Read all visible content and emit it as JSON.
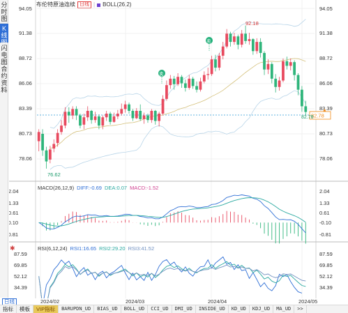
{
  "side_tabs": [
    {
      "label": "分时图",
      "active": false
    },
    {
      "label": "K线图",
      "active": true
    },
    {
      "label": "闪电图",
      "active": false
    },
    {
      "label": "合约资料",
      "active": false
    }
  ],
  "header": {
    "title": "布伦特原油连续",
    "period_badge": "日线",
    "indicator": "BOLL(26,2)",
    "indicator_color": "#6b3fd0"
  },
  "price_axis": {
    "ticks": [
      "94.05",
      "91.38",
      "88.72",
      "86.06",
      "83.39",
      "80.73",
      "78.06"
    ],
    "current_price": "82.78",
    "current_price_left": "82.78"
  },
  "annotations": {
    "high": "92.18",
    "low": "76.62",
    "sell_icon": "卖",
    "sell_icon_2": "卖"
  },
  "macd": {
    "label": "MACD(26,12,9)",
    "diff": "DIFF:-0.69",
    "dea": "DEA:0.07",
    "macd": "MACD:-1.52",
    "diff_color": "#2f6fd6",
    "dea_color": "#2aa9a0",
    "macd_color": "#d04090",
    "ticks": [
      "2.04",
      "1.33",
      "0.61",
      "-0.10",
      "-0.81"
    ]
  },
  "rsi": {
    "label": "RSI(6,12,24)",
    "rsi1": "RSI1:16.65",
    "rsi2": "RSI2:29.20",
    "rsi3": "RSI3:41.52",
    "ticks": [
      "87.59",
      "69.85",
      "52.12",
      "34.39"
    ]
  },
  "x_axis": [
    "2024/02",
    "2024/03",
    "2024/04",
    "2024/05"
  ],
  "bottom_bar": {
    "day_button": "日线",
    "tabs": [
      "指标",
      "模板",
      "VIP指标",
      "BARUPDN_UD",
      "BIAS_UD",
      "BOLL_UD",
      "CCI_UD",
      "DMI_UD",
      "INSIDE_UD",
      "KD_UD",
      "KDJ_UD",
      "MA_UD",
      ">>"
    ]
  },
  "chart_data": {
    "type": "candlestick",
    "title": "布伦特原油连续",
    "ylim": [
      76.0,
      94.05
    ],
    "candles": [
      [
        79.6,
        80.6,
        78.5,
        80.9
      ],
      [
        80.4,
        78.6,
        78.0,
        80.9
      ],
      [
        78.6,
        77.4,
        76.62,
        79.0
      ],
      [
        77.6,
        78.7,
        77.2,
        79.1
      ],
      [
        78.8,
        79.3,
        78.4,
        79.8
      ],
      [
        79.4,
        80.5,
        79.0,
        80.9
      ],
      [
        80.6,
        81.3,
        80.3,
        81.9
      ],
      [
        81.3,
        82.8,
        81.0,
        83.3
      ],
      [
        82.8,
        82.4,
        81.6,
        83.3
      ],
      [
        82.4,
        83.1,
        82.0,
        83.4
      ],
      [
        83.1,
        82.4,
        81.9,
        83.4
      ],
      [
        82.4,
        81.3,
        81.0,
        82.6
      ],
      [
        81.4,
        82.2,
        80.9,
        82.6
      ],
      [
        82.2,
        82.9,
        81.8,
        83.4
      ],
      [
        82.9,
        81.9,
        81.5,
        83.0
      ],
      [
        81.9,
        82.3,
        81.6,
        82.8
      ],
      [
        82.3,
        81.3,
        80.9,
        82.5
      ],
      [
        81.3,
        82.2,
        80.9,
        82.4
      ],
      [
        82.2,
        82.6,
        81.8,
        82.9
      ],
      [
        82.6,
        81.7,
        81.4,
        82.8
      ],
      [
        81.7,
        82.3,
        81.6,
        82.7
      ],
      [
        82.3,
        82.6,
        82.0,
        83.0
      ],
      [
        82.6,
        83.1,
        82.4,
        83.7
      ],
      [
        83.1,
        83.6,
        82.7,
        84.0
      ],
      [
        83.6,
        82.9,
        82.6,
        83.8
      ],
      [
        82.9,
        82.1,
        81.8,
        83.1
      ],
      [
        82.1,
        82.9,
        82.0,
        83.2
      ],
      [
        82.9,
        82.0,
        81.8,
        83.6
      ],
      [
        82.0,
        82.4,
        81.5,
        82.7
      ],
      [
        82.4,
        81.9,
        81.6,
        82.6
      ],
      [
        81.9,
        82.9,
        81.6,
        83.1
      ],
      [
        82.9,
        81.8,
        81.4,
        83.0
      ],
      [
        81.8,
        82.6,
        81.2,
        82.8
      ],
      [
        82.6,
        84.2,
        82.4,
        84.6
      ],
      [
        84.2,
        85.7,
        84.0,
        86.2
      ],
      [
        85.7,
        86.4,
        85.3,
        86.8
      ],
      [
        86.4,
        85.8,
        85.2,
        86.7
      ],
      [
        85.8,
        86.6,
        85.6,
        87.0
      ],
      [
        86.6,
        85.9,
        85.4,
        86.8
      ],
      [
        85.9,
        85.4,
        85.0,
        86.3
      ],
      [
        85.4,
        86.4,
        85.2,
        86.8
      ],
      [
        86.4,
        85.6,
        85.3,
        86.6
      ],
      [
        85.6,
        85.2,
        84.9,
        86.1
      ],
      [
        85.2,
        86.1,
        85.0,
        86.5
      ],
      [
        86.1,
        86.8,
        85.9,
        87.2
      ],
      [
        86.8,
        86.9,
        86.3,
        87.6
      ],
      [
        86.9,
        88.5,
        86.7,
        88.9
      ],
      [
        88.5,
        87.6,
        87.2,
        89.0
      ],
      [
        87.6,
        88.9,
        87.3,
        89.2
      ],
      [
        88.9,
        89.9,
        88.5,
        90.4
      ],
      [
        89.9,
        91.3,
        89.7,
        91.8
      ],
      [
        91.3,
        90.4,
        89.9,
        91.5
      ],
      [
        90.4,
        91.0,
        90.1,
        91.4
      ],
      [
        91.0,
        90.1,
        89.6,
        91.2
      ],
      [
        90.1,
        91.3,
        89.8,
        91.7
      ],
      [
        91.3,
        90.5,
        90.2,
        92.18
      ],
      [
        90.5,
        90.7,
        90.1,
        91.4
      ],
      [
        90.7,
        89.4,
        89.0,
        90.8
      ],
      [
        89.4,
        90.4,
        89.1,
        90.8
      ],
      [
        90.4,
        89.2,
        88.7,
        90.8
      ],
      [
        89.2,
        87.4,
        86.8,
        89.4
      ],
      [
        87.4,
        88.0,
        86.9,
        88.5
      ],
      [
        88.0,
        86.4,
        85.9,
        88.2
      ],
      [
        86.4,
        85.5,
        84.9,
        86.9
      ],
      [
        85.5,
        86.2,
        85.1,
        86.6
      ],
      [
        86.2,
        88.3,
        86.0,
        88.6
      ],
      [
        88.3,
        87.8,
        87.4,
        88.8
      ],
      [
        87.8,
        88.2,
        87.3,
        88.6
      ],
      [
        88.2,
        86.8,
        86.2,
        88.4
      ],
      [
        86.8,
        85.2,
        84.6,
        87.0
      ],
      [
        85.2,
        83.4,
        82.8,
        85.6
      ],
      [
        83.4,
        82.78,
        82.4,
        84.0
      ]
    ]
  }
}
